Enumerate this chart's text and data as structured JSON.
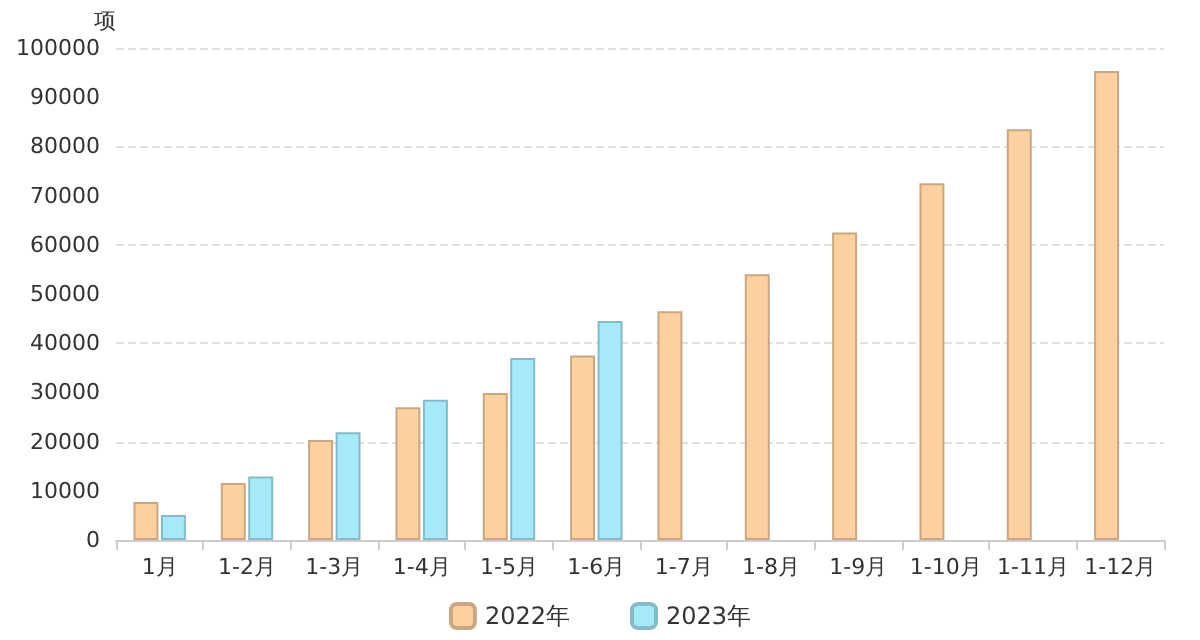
{
  "chart_data": {
    "type": "bar",
    "ylabel": "项",
    "categories": [
      "1月",
      "1-2月",
      "1-3月",
      "1-4月",
      "1-5月",
      "1-6月",
      "1-7月",
      "1-8月",
      "1-9月",
      "1-10月",
      "1-11月",
      "1-12月"
    ],
    "series": [
      {
        "name": "2022年",
        "color": "#fdd0a2",
        "values": [
          7700,
          11600,
          20300,
          27000,
          29900,
          37500,
          46500,
          54000,
          62500,
          72500,
          83500,
          95300
        ]
      },
      {
        "name": "2023年",
        "color": "#a6e9f9",
        "values": [
          5100,
          12900,
          21900,
          28500,
          37000,
          44500,
          null,
          null,
          null,
          null,
          null,
          null
        ]
      }
    ],
    "ylim": [
      0,
      100000
    ],
    "yticks": [
      0,
      10000,
      20000,
      30000,
      40000,
      50000,
      60000,
      70000,
      80000,
      90000,
      100000
    ],
    "grid": "y",
    "legend": "bottom"
  }
}
